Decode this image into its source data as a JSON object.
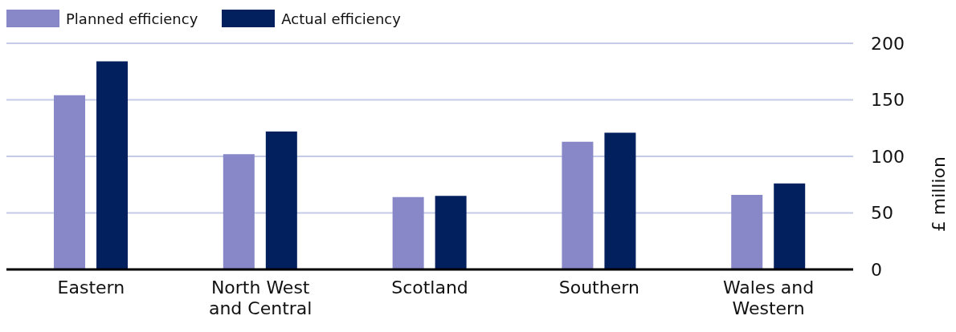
{
  "chart_data": {
    "type": "bar",
    "ylabel": "£ million",
    "categories": [
      "Eastern",
      "North West and Central",
      "Scotland",
      "Southern",
      "Wales and Western"
    ],
    "series": [
      {
        "name": "Planned efficiency",
        "color": "#8888c8",
        "values": [
          154,
          102,
          64,
          113,
          66
        ]
      },
      {
        "name": "Actual efficiency",
        "color": "#021f5e",
        "values": [
          184,
          122,
          65,
          121,
          76
        ]
      }
    ],
    "ylim": [
      0,
      200
    ],
    "yticks": [
      0,
      50,
      100,
      150,
      200
    ],
    "grid": "y",
    "legend": "top left"
  }
}
